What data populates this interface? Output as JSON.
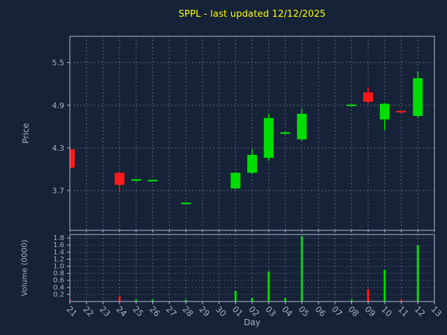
{
  "colors": {
    "background": "#152238",
    "title": "#ffff00",
    "axis_text": "#a3b1c6",
    "spine": "#b7c0d0",
    "grid": "#c9d6ee",
    "up": "#00dd00",
    "down": "#ff1a1a"
  },
  "chart_data": {
    "type": "candlestick_with_volume",
    "title": "SPPL - last updated 12/12/2025",
    "xlabel": "Day",
    "price_ylabel": "Price",
    "volume_ylabel": "Volume (0000)",
    "x_ticklabels": [
      "21",
      "22",
      "23",
      "24",
      "25",
      "26",
      "27",
      "28",
      "29",
      "30",
      "01",
      "02",
      "03",
      "04",
      "05",
      "06",
      "07",
      "08",
      "09",
      "10",
      "11",
      "12",
      "13"
    ],
    "price_ticks": [
      3.7,
      4.3,
      4.9,
      5.5
    ],
    "price_ylim": [
      3.14,
      5.87
    ],
    "volume_ticks": [
      0.2,
      0.4,
      0.6,
      0.8,
      1.0,
      1.2,
      1.4,
      1.6,
      1.8
    ],
    "volume_ylim": [
      0,
      1.9
    ],
    "legend": "none",
    "grid": "dashed",
    "candles": [
      {
        "day": "21",
        "open": 4.28,
        "high": 4.3,
        "low": 4.0,
        "close": 4.02,
        "volume": 0.05
      },
      {
        "day": "24",
        "open": 3.95,
        "high": 3.97,
        "low": 3.68,
        "close": 3.78,
        "volume": 0.15
      },
      {
        "day": "25",
        "open": 3.84,
        "high": 3.86,
        "low": 3.82,
        "close": 3.85,
        "volume": 0.05
      },
      {
        "day": "26",
        "open": 3.84,
        "high": 3.85,
        "low": 3.83,
        "close": 3.84,
        "volume": 0.05
      },
      {
        "day": "28",
        "open": 3.52,
        "high": 3.53,
        "low": 3.51,
        "close": 3.52,
        "volume": 0.05
      },
      {
        "day": "01",
        "open": 3.73,
        "high": 3.96,
        "low": 3.72,
        "close": 3.95,
        "volume": 0.3
      },
      {
        "day": "02",
        "open": 3.95,
        "high": 4.28,
        "low": 3.93,
        "close": 4.2,
        "volume": 0.1
      },
      {
        "day": "03",
        "open": 4.16,
        "high": 4.78,
        "low": 4.12,
        "close": 4.72,
        "volume": 0.85
      },
      {
        "day": "04",
        "open": 4.5,
        "high": 4.53,
        "low": 4.48,
        "close": 4.51,
        "volume": 0.1
      },
      {
        "day": "05",
        "open": 4.42,
        "high": 4.85,
        "low": 4.4,
        "close": 4.78,
        "volume": 1.85
      },
      {
        "day": "08",
        "open": 4.9,
        "high": 4.91,
        "low": 4.89,
        "close": 4.9,
        "volume": 0.05
      },
      {
        "day": "09",
        "open": 5.08,
        "high": 5.15,
        "low": 4.93,
        "close": 4.95,
        "volume": 0.35
      },
      {
        "day": "10",
        "open": 4.7,
        "high": 4.93,
        "low": 4.55,
        "close": 4.92,
        "volume": 0.9
      },
      {
        "day": "11",
        "open": 4.81,
        "high": 4.82,
        "low": 4.79,
        "close": 4.79,
        "volume": 0.05
      },
      {
        "day": "12",
        "open": 4.75,
        "high": 5.38,
        "low": 4.72,
        "close": 5.28,
        "volume": 1.6
      }
    ]
  }
}
